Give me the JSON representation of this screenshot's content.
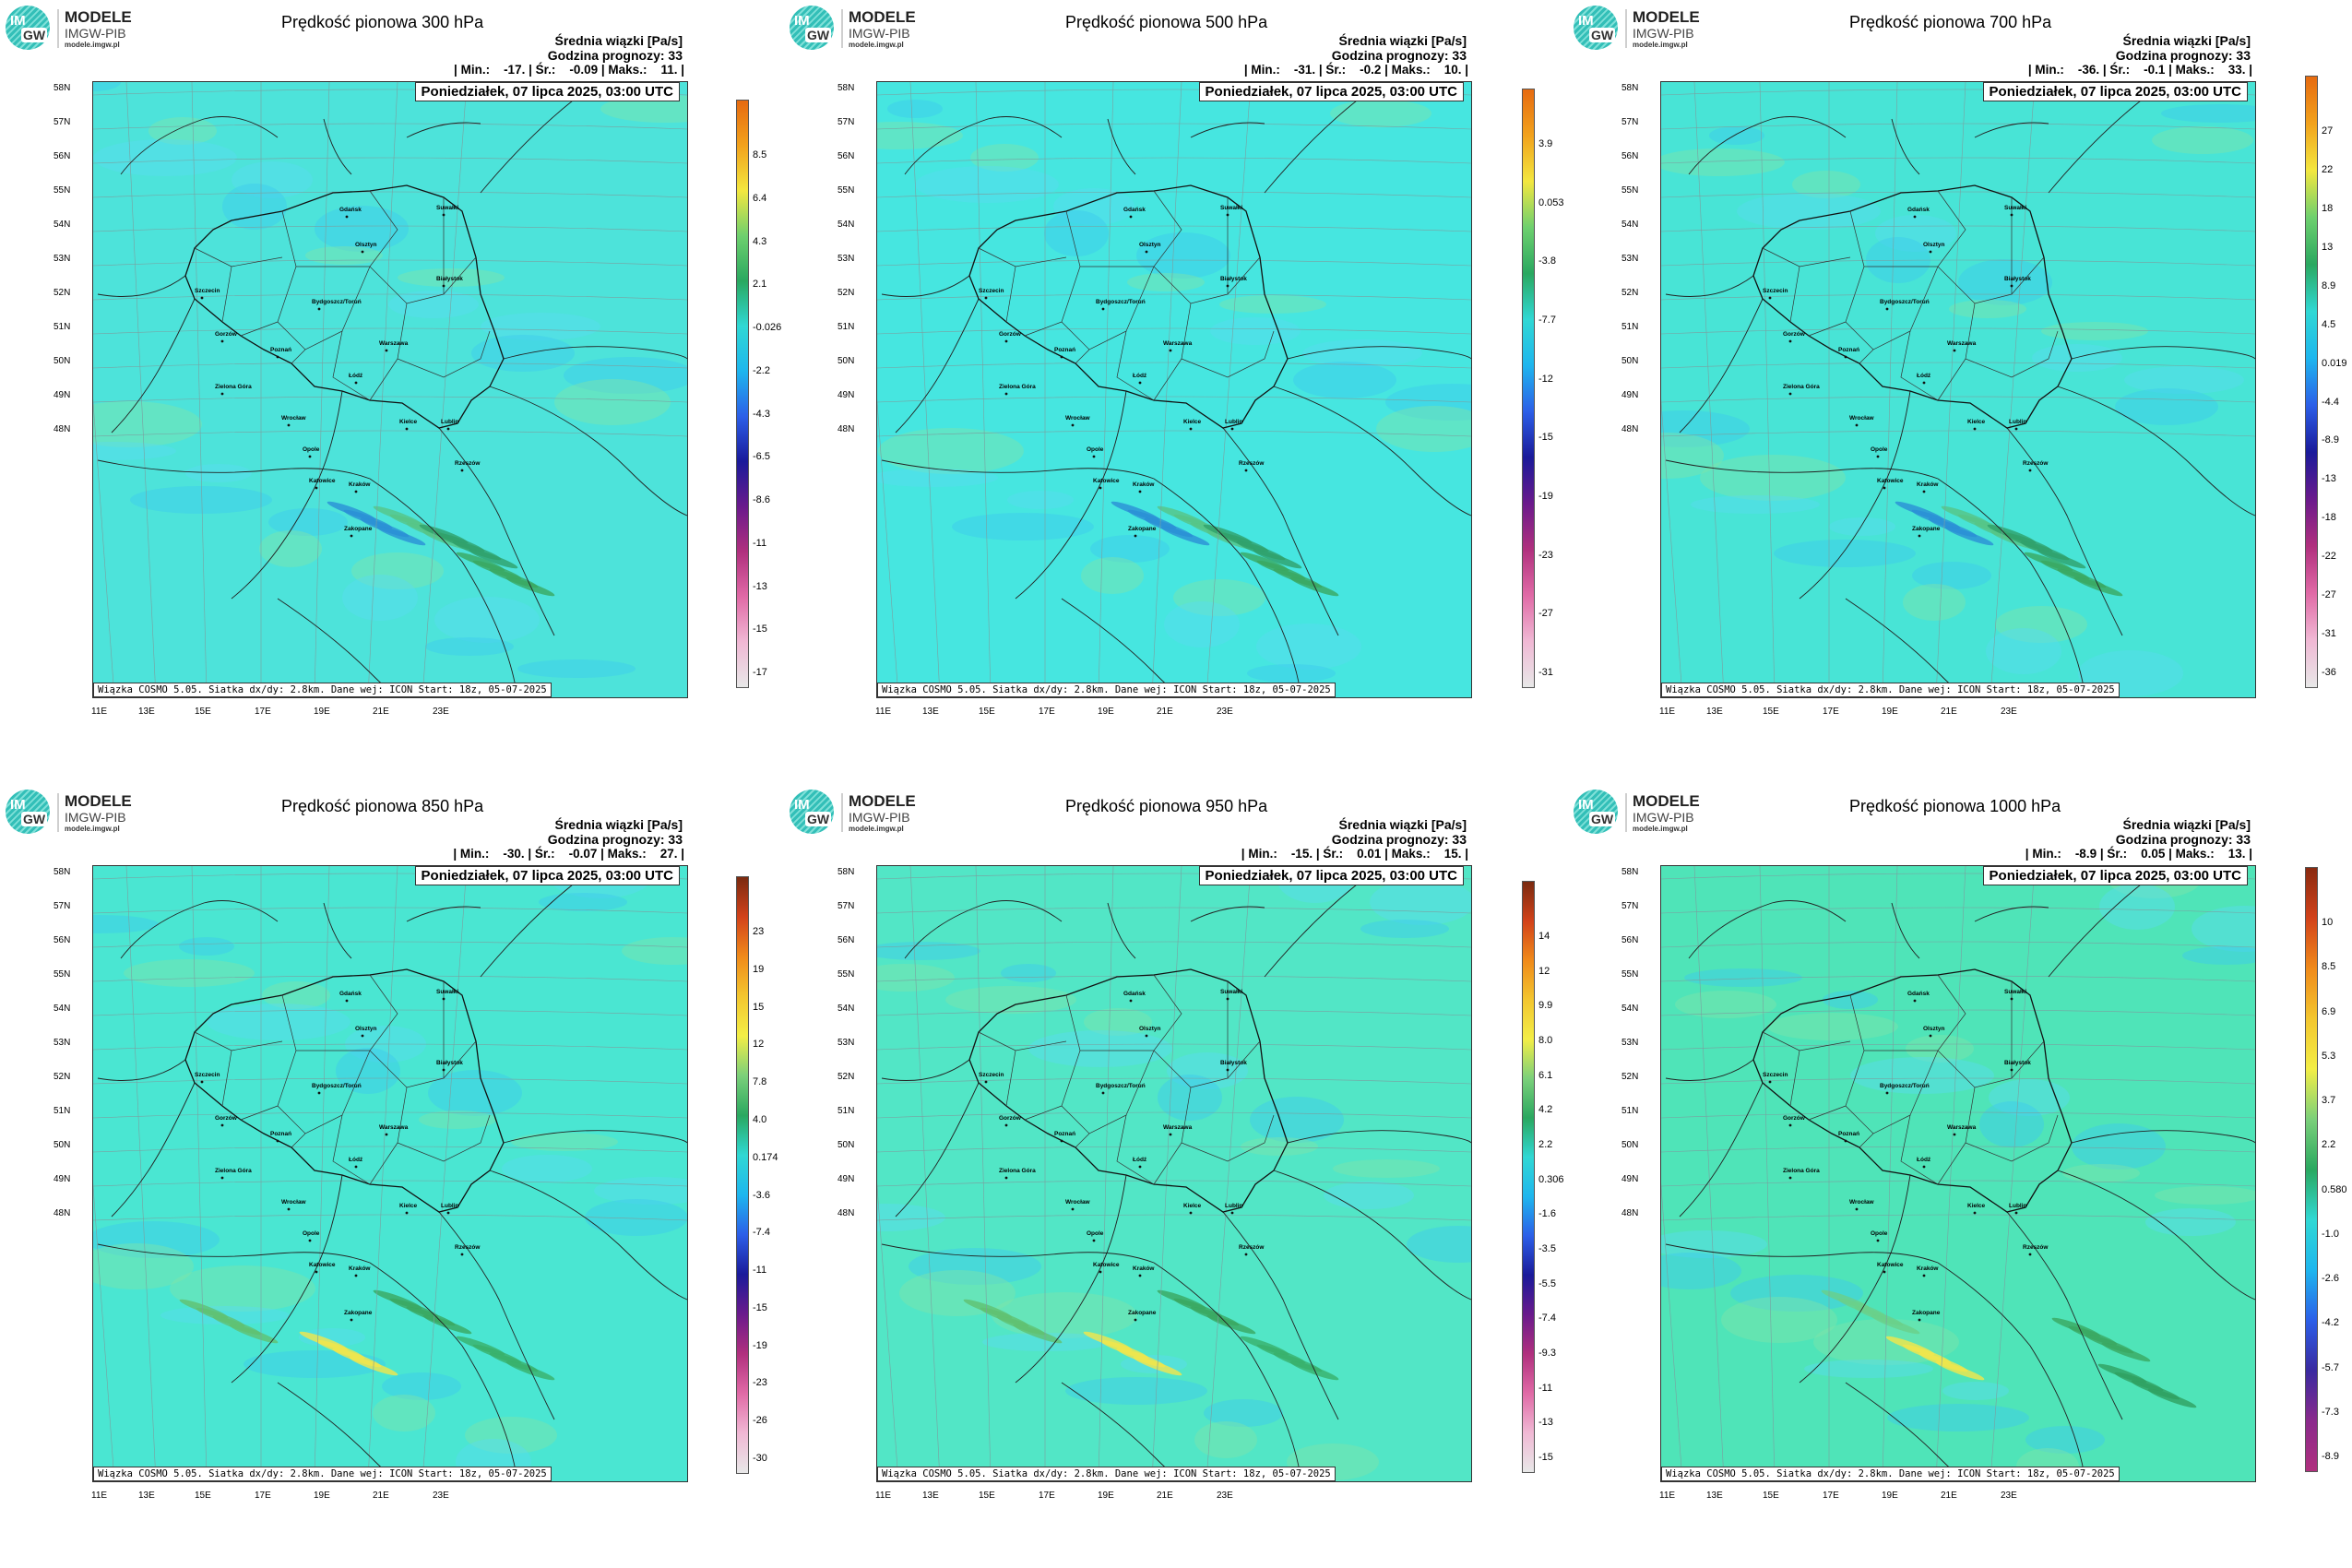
{
  "logo": {
    "line1": "MODELE",
    "line2": "IMGW-PIB",
    "line3": "modele.imgw.pl",
    "badge_top": "IM",
    "badge_bottom": "GW"
  },
  "common": {
    "info_line1": "Średnia wiązki [Pa/s]",
    "info_line2": "Godzina prognozy: 33",
    "date": "Poniedziałek, 07 lipca 2025, 03:00 UTC",
    "credit": "Wiązka COSMO 5.05. Siatka dx/dy: 2.8km. Dane wej: ICON Start: 18z, 05-07-2025",
    "lat_labels": [
      "58N",
      "57N",
      "56N",
      "55N",
      "54N",
      "53N",
      "52N",
      "51N",
      "50N",
      "49N",
      "48N"
    ],
    "lon_labels": [
      "11E",
      "13E",
      "15E",
      "17E",
      "19E",
      "21E",
      "23E"
    ],
    "cities": [
      "Gdańsk",
      "Suwałki",
      "Olsztyn",
      "Szczecin",
      "Białystok",
      "Bydgoszcz/Toruń",
      "Gorzów",
      "Poznań",
      "Warszawa",
      "Zielona Góra",
      "Łódź",
      "Lublin",
      "Wrocław",
      "Kielce",
      "Opole",
      "Rzeszów",
      "Katowice",
      "Kraków",
      "Zakopane"
    ]
  },
  "panels": [
    {
      "title": "Prędkość pionowa 300 hPa",
      "stats": "| Min.:    -17. | Śr.:    -0.09 | Maks.:    11. |",
      "colorbar": [
        "8.5",
        "6.4",
        "4.3",
        "2.1",
        "-0.026",
        "-2.2",
        "-4.3",
        "-6.5",
        "-8.6",
        "-11",
        "-13",
        "-15",
        "-17"
      ],
      "bg_color": "#4de3da",
      "theme": "cool"
    },
    {
      "title": "Prędkość pionowa 500 hPa",
      "stats": "| Min.:    -31. | Śr.:    -0.2 | Maks.:    10. |",
      "colorbar": [
        "3.9",
        "0.053",
        "-3.8",
        "-7.7",
        "-12",
        "-15",
        "-19",
        "-23",
        "-27",
        "-31"
      ],
      "bg_color": "#46e6e0",
      "theme": "cool"
    },
    {
      "title": "Prędkość pionowa 700 hPa",
      "stats": "| Min.:    -36. | Śr.:    -0.1 | Maks.:    33. |",
      "colorbar": [
        "27",
        "22",
        "18",
        "13",
        "8.9",
        "4.5",
        "0.019",
        "-4.4",
        "-8.9",
        "-13",
        "-18",
        "-22",
        "-27",
        "-31",
        "-36"
      ],
      "bg_color": "#48e4d6",
      "theme": "cool"
    },
    {
      "title": "Prędkość pionowa 850 hPa",
      "stats": "| Min.:    -30. | Śr.:    -0.07 | Maks.:    27. |",
      "colorbar": [
        "23",
        "19",
        "15",
        "12",
        "7.8",
        "4.0",
        "0.174",
        "-3.6",
        "-7.4",
        "-11",
        "-15",
        "-19",
        "-23",
        "-26",
        "-30"
      ],
      "bg_color": "#4ae6d2",
      "theme": "mixed"
    },
    {
      "title": "Prędkość pionowa 950 hPa",
      "stats": "| Min.:    -15. | Śr.:    0.01 | Maks.:    15. |",
      "colorbar": [
        "14",
        "12",
        "9.9",
        "8.0",
        "6.1",
        "4.2",
        "2.2",
        "0.306",
        "-1.6",
        "-3.5",
        "-5.5",
        "-7.4",
        "-9.3",
        "-11",
        "-13",
        "-15"
      ],
      "bg_color": "#52e6c6",
      "theme": "mixed"
    },
    {
      "title": "Prędkość pionowa 1000 hPa",
      "stats": "| Min.:    -8.9 | Śr.:    0.05 | Maks.:    13. |",
      "colorbar": [
        "10",
        "8.5",
        "6.9",
        "5.3",
        "3.7",
        "2.2",
        "0.580",
        "-1.0",
        "-2.6",
        "-4.2",
        "-5.7",
        "-7.3",
        "-8.9"
      ],
      "bg_color": "#4fe4b8",
      "theme": "warm"
    }
  ]
}
